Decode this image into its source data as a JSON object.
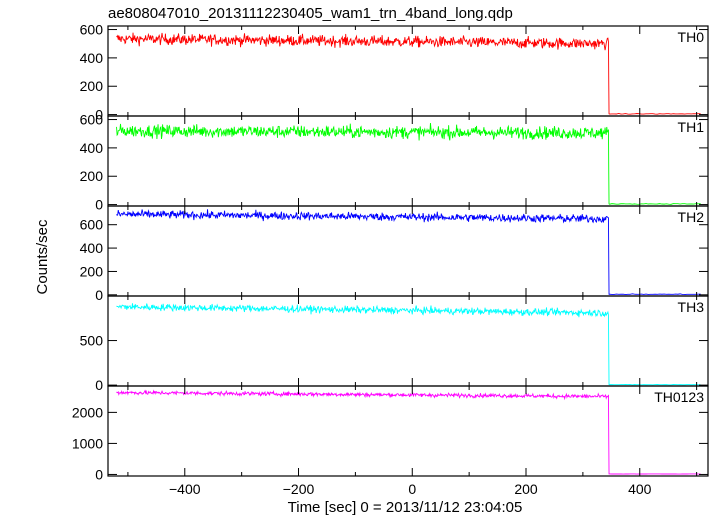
{
  "chart_data": {
    "type": "line",
    "title": "ae808047010_20131112230405_wam1_trn_4band_long.qdp",
    "xlabel": "Time [sec] 0 = 2013/11/12 23:04:05",
    "ylabel": "Counts/sec",
    "xlim": [
      -535,
      520
    ],
    "x_ticks": [
      "−400",
      "−200",
      "0",
      "200",
      "400"
    ],
    "x_tick_values": [
      -400,
      -200,
      0,
      200,
      400
    ],
    "drop_time": 345,
    "data_start": -520,
    "data_end": 510,
    "panels": [
      {
        "name": "TH0",
        "color": "#ff0000",
        "ylim": [
          -10,
          625
        ],
        "y_ticks": [
          0,
          200,
          400,
          600
        ],
        "y_tick_labels": [
          "0",
          "200",
          "400",
          "600"
        ],
        "level_start": 535,
        "level_end": 500,
        "noise": 28,
        "after_level": 5
      },
      {
        "name": "TH1",
        "color": "#00ff00",
        "ylim": [
          -10,
          625
        ],
        "y_ticks": [
          0,
          200,
          400,
          600
        ],
        "y_tick_labels": [
          "0",
          "200",
          "400",
          "600"
        ],
        "level_start": 520,
        "level_end": 505,
        "noise": 32,
        "after_level": 5
      },
      {
        "name": "TH2",
        "color": "#0000ff",
        "ylim": [
          -10,
          760
        ],
        "y_ticks": [
          0,
          200,
          400,
          600
        ],
        "y_tick_labels": [
          "0",
          "200",
          "400",
          "600"
        ],
        "level_start": 690,
        "level_end": 650,
        "noise": 25,
        "after_level": 5
      },
      {
        "name": "TH3",
        "color": "#00ffff",
        "ylim": [
          -10,
          1000
        ],
        "y_ticks": [
          0,
          500
        ],
        "y_tick_labels": [
          "0",
          "500"
        ],
        "level_start": 880,
        "level_end": 810,
        "noise": 28,
        "after_level": 5
      },
      {
        "name": "TH0123",
        "color": "#ff00ff",
        "ylim": [
          -50,
          2850
        ],
        "y_ticks": [
          0,
          1000,
          2000
        ],
        "y_tick_labels": [
          "0",
          "1000",
          "2000"
        ],
        "level_start": 2640,
        "level_end": 2510,
        "noise": 45,
        "after_level": 15
      }
    ]
  }
}
